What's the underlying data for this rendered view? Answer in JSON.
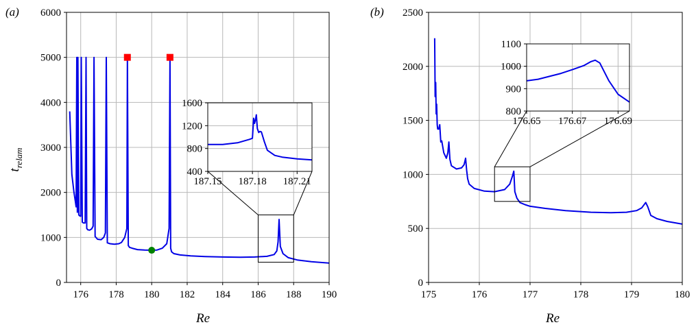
{
  "figure": {
    "panel_a_label": "(a)",
    "panel_b_label": "(b)",
    "ylabel_main": "t",
    "ylabel_sub": "relam",
    "xlabel": "Re"
  },
  "chart_data": [
    {
      "id": "a",
      "type": "line",
      "xlabel": "Re",
      "ylabel": "t_relam",
      "xlim": [
        175.2,
        190
      ],
      "ylim": [
        0,
        6000
      ],
      "xticks": [
        176,
        178,
        180,
        182,
        184,
        186,
        188,
        190
      ],
      "yticks": [
        0,
        1000,
        2000,
        3000,
        4000,
        5000,
        6000
      ],
      "grid": true,
      "series": [
        {
          "color": "#0000e6",
          "x": [
            175.38,
            175.5,
            175.62,
            175.7,
            175.74,
            175.78,
            175.81,
            175.84,
            175.89,
            175.94,
            176.0,
            176.03,
            176.09,
            176.16,
            176.25,
            176.3,
            176.34,
            176.4,
            176.5,
            176.62,
            176.7,
            176.75,
            176.81,
            176.95,
            177.15,
            177.3,
            177.39,
            177.44,
            177.5,
            177.65,
            177.9,
            178.15,
            178.3,
            178.48,
            178.6,
            178.63,
            178.68,
            178.75,
            178.9,
            179.2,
            179.6,
            180.0,
            180.3,
            180.6,
            180.85,
            180.98,
            181.03,
            181.07,
            181.12,
            181.25,
            181.6,
            182.2,
            183.0,
            184.0,
            185.0,
            185.8,
            186.5,
            186.9,
            187.05,
            187.12,
            187.18,
            187.25,
            187.4,
            187.7,
            188.2,
            189.0,
            190.0
          ],
          "y": [
            3800,
            2400,
            2000,
            1800,
            1680,
            5000,
            1560,
            5000,
            1500,
            1480,
            1470,
            5000,
            1340,
            1320,
            1320,
            5000,
            1200,
            1170,
            1160,
            1190,
            1250,
            5000,
            1020,
            960,
            950,
            1000,
            1100,
            5000,
            880,
            860,
            850,
            860,
            890,
            1000,
            1200,
            5000,
            820,
            780,
            760,
            730,
            720,
            715,
            720,
            760,
            860,
            1200,
            5000,
            760,
            680,
            640,
            610,
            590,
            575,
            565,
            560,
            565,
            580,
            620,
            700,
            900,
            1400,
            800,
            640,
            550,
            500,
            460,
            430
          ]
        }
      ],
      "markers": [
        {
          "type": "square",
          "color": "#ff0000",
          "x": 178.63,
          "y": 5000
        },
        {
          "type": "square",
          "color": "#ff0000",
          "x": 181.03,
          "y": 5000
        },
        {
          "type": "circle",
          "color": "#008000",
          "x": 180.0,
          "y": 715
        }
      ],
      "zoom_box": {
        "x": [
          186,
          188
        ],
        "y": [
          450,
          1500
        ]
      },
      "inset": {
        "type": "line",
        "xlim": [
          187.15,
          187.22
        ],
        "ylim": [
          400,
          1600
        ],
        "xticks": [
          187.15,
          187.18,
          187.21
        ],
        "yticks": [
          400,
          800,
          1200,
          1600
        ],
        "grid": true,
        "x": [
          187.15,
          187.16,
          187.17,
          187.178,
          187.18,
          187.1808,
          187.1814,
          187.182,
          187.1826,
          187.1833,
          187.1842,
          187.185,
          187.186,
          187.188,
          187.19,
          187.195,
          187.2,
          187.21,
          187.22
        ],
        "y": [
          870,
          870,
          900,
          960,
          980,
          1330,
          1240,
          1300,
          1390,
          1150,
          1080,
          1100,
          1090,
          920,
          770,
          680,
          650,
          620,
          600
        ]
      }
    },
    {
      "id": "b",
      "type": "line",
      "xlabel": "Re",
      "xlim": [
        175,
        180
      ],
      "ylim": [
        0,
        2500
      ],
      "xticks": [
        175,
        176,
        177,
        178,
        179,
        180
      ],
      "yticks": [
        0,
        500,
        1000,
        1500,
        2000,
        2500
      ],
      "grid": true,
      "series": [
        {
          "color": "#0000e6",
          "x": [
            175.12,
            175.13,
            175.14,
            175.15,
            175.16,
            175.17,
            175.18,
            175.2,
            175.22,
            175.24,
            175.26,
            175.3,
            175.35,
            175.38,
            175.4,
            175.42,
            175.45,
            175.55,
            175.65,
            175.7,
            175.73,
            175.75,
            175.77,
            175.8,
            175.9,
            176.1,
            176.3,
            176.5,
            176.6,
            176.65,
            176.68,
            176.7,
            176.74,
            176.8,
            176.9,
            177.0,
            177.3,
            177.7,
            178.2,
            178.6,
            178.9,
            179.1,
            179.2,
            179.28,
            179.32,
            179.38,
            179.5,
            179.7,
            180.0
          ],
          "y": [
            2260,
            1720,
            1850,
            1560,
            1650,
            1460,
            1420,
            1420,
            1460,
            1300,
            1310,
            1200,
            1150,
            1200,
            1300,
            1140,
            1080,
            1050,
            1060,
            1090,
            1150,
            1040,
            960,
            910,
            870,
            845,
            840,
            860,
            910,
            980,
            1030,
            840,
            780,
            740,
            720,
            705,
            685,
            665,
            650,
            645,
            650,
            665,
            690,
            740,
            700,
            620,
            590,
            565,
            540
          ]
        }
      ],
      "zoom_box": {
        "x": [
          176.3,
          177.0
        ],
        "y": [
          750,
          1070
        ]
      },
      "inset": {
        "type": "line",
        "xlim": [
          176.65,
          176.695
        ],
        "ylim": [
          800,
          1100
        ],
        "xticks": [
          176.65,
          176.67,
          176.69
        ],
        "yticks": [
          800,
          900,
          1000,
          1100
        ],
        "grid": true,
        "x": [
          176.65,
          176.655,
          176.66,
          176.665,
          176.67,
          176.675,
          176.678,
          176.68,
          176.682,
          176.684,
          176.686,
          176.69,
          176.695
        ],
        "y": [
          935,
          942,
          955,
          968,
          985,
          1003,
          1020,
          1027,
          1015,
          975,
          935,
          875,
          840
        ]
      }
    }
  ]
}
